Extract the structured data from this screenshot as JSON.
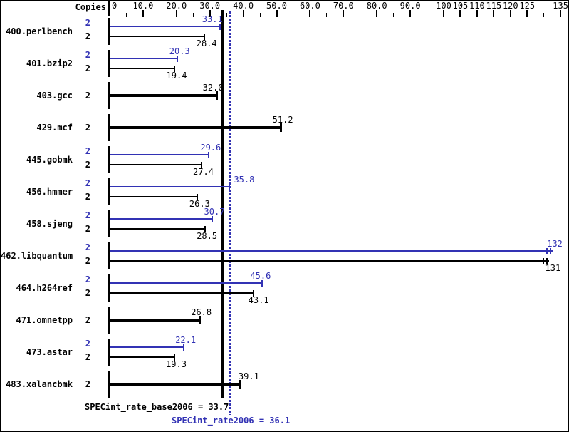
{
  "chart_data": {
    "type": "bar",
    "orientation": "horizontal",
    "title": "",
    "copies_column_label": "Copies",
    "colors": {
      "peak_blue": "#3232b4",
      "base_black": "#000000",
      "background": "#ffffff",
      "border": "#000000"
    },
    "x_axis": {
      "min": 0,
      "max": 135,
      "grid": false,
      "labeled_ticks": [
        {
          "value": 0,
          "label": "0"
        },
        {
          "value": 10,
          "label": "10.0"
        },
        {
          "value": 20,
          "label": "20.0"
        },
        {
          "value": 30,
          "label": "30.0"
        },
        {
          "value": 40,
          "label": "40.0"
        },
        {
          "value": 50,
          "label": "50.0"
        },
        {
          "value": 60,
          "label": "60.0"
        },
        {
          "value": 70,
          "label": "70.0"
        },
        {
          "value": 80,
          "label": "80.0"
        },
        {
          "value": 90,
          "label": "90.0"
        },
        {
          "value": 100,
          "label": "100"
        },
        {
          "value": 105,
          "label": "105"
        },
        {
          "value": 110,
          "label": "110"
        },
        {
          "value": 115,
          "label": "115"
        },
        {
          "value": 120,
          "label": "120"
        },
        {
          "value": 125,
          "label": "125"
        },
        {
          "value": 135,
          "label": "135"
        }
      ],
      "minor_ticks": [
        5,
        15,
        25,
        35,
        45,
        55,
        65,
        75,
        85,
        95,
        130
      ]
    },
    "legend": {
      "peak_series": "SPECint_rate2006 (blue)",
      "base_series": "SPECint_rate_base2006 (black)"
    },
    "benchmarks": [
      {
        "name": "400.perlbench",
        "bars": [
          {
            "kind": "peak",
            "copies": "2",
            "value": 33.1,
            "label": "33.1",
            "label_dx": -14
          },
          {
            "kind": "base",
            "copies": "2",
            "value": 28.4,
            "label": "28.4",
            "label_dx": 0
          }
        ]
      },
      {
        "name": "401.bzip2",
        "bars": [
          {
            "kind": "peak",
            "copies": "2",
            "value": 20.3,
            "label": "20.3",
            "label_dx": 0
          },
          {
            "kind": "base",
            "copies": "2",
            "value": 19.4,
            "label": "19.4",
            "label_dx": 0
          }
        ]
      },
      {
        "name": "403.gcc",
        "bars": [
          {
            "kind": "single",
            "copies": "2",
            "value": 32.0,
            "label": "32.0",
            "label_dx": -8
          }
        ]
      },
      {
        "name": "429.mcf",
        "bars": [
          {
            "kind": "single",
            "copies": "2",
            "value": 51.2,
            "label": "51.2",
            "label_dx": 0
          }
        ]
      },
      {
        "name": "445.gobmk",
        "bars": [
          {
            "kind": "peak",
            "copies": "2",
            "value": 29.6,
            "label": "29.6",
            "label_dx": 0
          },
          {
            "kind": "base",
            "copies": "2",
            "value": 27.4,
            "label": "27.4",
            "label_dx": 0
          }
        ]
      },
      {
        "name": "456.hmmer",
        "bars": [
          {
            "kind": "peak",
            "copies": "2",
            "value": 35.8,
            "label": "35.8",
            "label_dx": 18
          },
          {
            "kind": "base",
            "copies": "2",
            "value": 26.3,
            "label": "26.3",
            "label_dx": 0
          }
        ]
      },
      {
        "name": "458.sjeng",
        "bars": [
          {
            "kind": "peak",
            "copies": "2",
            "value": 30.7,
            "label": "30.7",
            "label_dx": 0
          },
          {
            "kind": "base",
            "copies": "2",
            "value": 28.5,
            "label": "28.5",
            "label_dx": 0
          }
        ]
      },
      {
        "name": "462.libquantum",
        "bars": [
          {
            "kind": "peak",
            "copies": "2",
            "value": 132,
            "label": "132",
            "label_dx": 3,
            "double_cap": true
          },
          {
            "kind": "base",
            "copies": "2",
            "value": 131,
            "label": "131",
            "label_dx": 5,
            "double_cap": true
          }
        ]
      },
      {
        "name": "464.h264ref",
        "bars": [
          {
            "kind": "peak",
            "copies": "2",
            "value": 45.6,
            "label": "45.6",
            "label_dx": -5
          },
          {
            "kind": "base",
            "copies": "2",
            "value": 43.1,
            "label": "43.1",
            "label_dx": 4
          }
        ]
      },
      {
        "name": "471.omnetpp",
        "bars": [
          {
            "kind": "single",
            "copies": "2",
            "value": 26.8,
            "label": "26.8",
            "label_dx": 0
          }
        ]
      },
      {
        "name": "473.astar",
        "bars": [
          {
            "kind": "peak",
            "copies": "2",
            "value": 22.1,
            "label": "22.1",
            "label_dx": 0
          },
          {
            "kind": "base",
            "copies": "2",
            "value": 19.3,
            "label": "19.3",
            "label_dx": 0
          }
        ]
      },
      {
        "name": "483.xalancbmk",
        "bars": [
          {
            "kind": "single",
            "copies": "2",
            "value": 39.1,
            "label": "39.1",
            "label_dx": 9
          }
        ]
      }
    ],
    "reference_lines": [
      {
        "kind": "base_median",
        "value": 33.7,
        "style": "solid",
        "color": "#000000"
      },
      {
        "kind": "peak_median",
        "value": 36.1,
        "style": "dotted",
        "color": "#3232b4"
      }
    ],
    "summary": {
      "base_label": "SPECint_rate_base2006 = 33.7",
      "peak_label": "SPECint_rate2006 = 36.1"
    }
  }
}
